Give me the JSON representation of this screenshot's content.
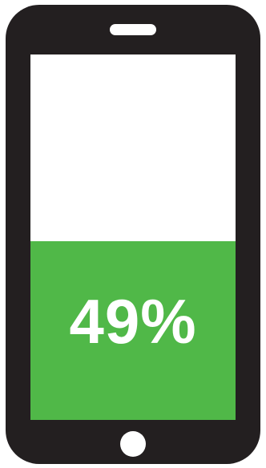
{
  "battery": {
    "level_fraction": 0.49,
    "percent_label": "49%",
    "fill_color": "#50b848"
  },
  "device": {
    "frame_color": "#231f20",
    "screen_color": "#ffffff",
    "icons": [
      "speaker-icon",
      "home-button-icon"
    ]
  }
}
